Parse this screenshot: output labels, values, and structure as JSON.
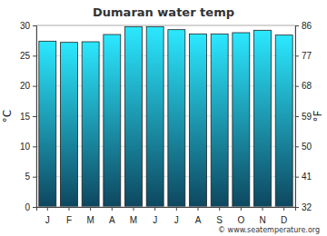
{
  "chart_data": {
    "type": "bar",
    "title": "Dumaran water temp",
    "categories": [
      "J",
      "F",
      "M",
      "A",
      "M",
      "J",
      "J",
      "A",
      "S",
      "O",
      "N",
      "D"
    ],
    "values": [
      27.4,
      27.2,
      27.3,
      28.5,
      29.8,
      29.8,
      29.3,
      28.6,
      28.6,
      28.8,
      29.2,
      28.4
    ],
    "color": "#1fa8e0",
    "y_label": "°C",
    "y2_label": "°F",
    "ylim": [
      0,
      30
    ],
    "yticks": [
      0,
      5,
      10,
      15,
      20,
      25,
      30
    ],
    "y2lim": [
      32,
      86
    ],
    "y2ticks": [
      32,
      41,
      50,
      59,
      68,
      77,
      86
    ],
    "grid": true,
    "annotation": "© www.seatemperature.org"
  }
}
